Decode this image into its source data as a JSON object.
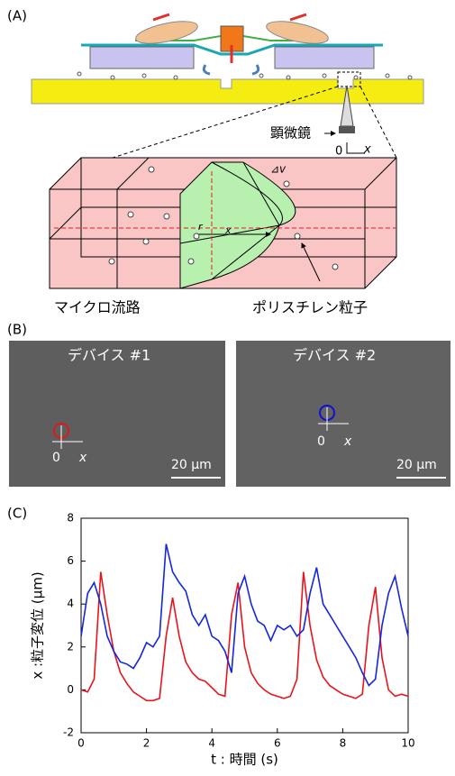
{
  "panel_a": {
    "label": "(A)",
    "microscope": "顕微鏡",
    "origin": "0",
    "axis_x": "x",
    "delta_v": "⊿v",
    "r": "r",
    "x": "x",
    "channel": "マイクロ流路",
    "particle": "ポリスチレン粒子"
  },
  "panel_b": {
    "label": "(B)",
    "images": [
      {
        "title": "デバイス #1",
        "origin": "0",
        "axis_x": "x",
        "scale": "20 μm"
      },
      {
        "title": "デバイス #2",
        "origin": "0",
        "axis_x": "x",
        "scale": "20 μm"
      }
    ]
  },
  "chart_data": {
    "type": "line",
    "label": "(C)",
    "xlabel": "t : 時間 (s)",
    "ylabel": "x :粒子変位 (μm)",
    "xlim": [
      0,
      10
    ],
    "ylim": [
      -2,
      8
    ],
    "xticks": [
      0,
      2,
      4,
      6,
      8,
      10
    ],
    "yticks": [
      -2,
      0,
      2,
      4,
      6,
      8
    ],
    "x": [
      0,
      0.2,
      0.4,
      0.6,
      0.8,
      1,
      1.2,
      1.4,
      1.6,
      1.8,
      2,
      2.2,
      2.4,
      2.6,
      2.8,
      3,
      3.2,
      3.4,
      3.6,
      3.8,
      4,
      4.2,
      4.4,
      4.6,
      4.8,
      5,
      5.2,
      5.4,
      5.6,
      5.8,
      6,
      6.2,
      6.4,
      6.6,
      6.8,
      7,
      7.2,
      7.4,
      7.6,
      7.8,
      8,
      8.2,
      8.4,
      8.6,
      8.8,
      9,
      9.2,
      9.4,
      9.6,
      9.8,
      10
    ],
    "series": [
      {
        "color": "#e8141b",
        "values": [
          0,
          -0.1,
          0.5,
          5.5,
          3.5,
          1.8,
          0.8,
          0.3,
          -0.1,
          -0.3,
          -0.5,
          -0.5,
          -0.4,
          2.5,
          4.3,
          2.5,
          1.3,
          0.8,
          0.5,
          0.4,
          0.1,
          -0.2,
          -0.3,
          3.5,
          5,
          2,
          0.8,
          0.3,
          0,
          -0.2,
          -0.3,
          -0.4,
          -0.3,
          0.5,
          5.5,
          3,
          1.4,
          0.6,
          0.2,
          0,
          -0.2,
          -0.3,
          -0.4,
          -0.2,
          3,
          4.8,
          1.5,
          0,
          -0.3,
          -0.2,
          -0.3
        ]
      },
      {
        "color": "#1426e0",
        "values": [
          2.5,
          4.5,
          5,
          4,
          2.5,
          1.8,
          1.3,
          1.2,
          1,
          1.5,
          2.2,
          2,
          2.5,
          6.8,
          5.5,
          5,
          4.6,
          3.5,
          3,
          3.5,
          2.5,
          2.3,
          1.8,
          0.8,
          4.5,
          5.3,
          4,
          3.2,
          3,
          2.3,
          3,
          2.8,
          3,
          2.5,
          2.8,
          4.5,
          5.7,
          4,
          3.5,
          3,
          2.5,
          2,
          1.5,
          0.8,
          0.2,
          0.5,
          3,
          4.5,
          5.3,
          3.8,
          2.5
        ]
      }
    ]
  }
}
